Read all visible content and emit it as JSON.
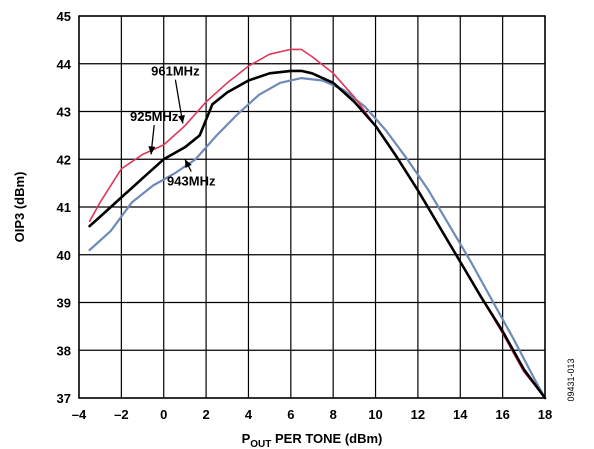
{
  "chart_data": {
    "type": "line",
    "title": "",
    "xlabel_main": "P",
    "xlabel_sub": "OUT",
    "xlabel_rest": " PER TONE (dBm)",
    "ylabel": "OIP3 (dBm)",
    "xlim": [
      -4,
      18
    ],
    "ylim": [
      37,
      45
    ],
    "xticks": [
      -4,
      -2,
      0,
      2,
      4,
      6,
      8,
      10,
      12,
      14,
      16,
      18
    ],
    "xtick_labels": [
      "–4",
      "–2",
      "0",
      "2",
      "4",
      "6",
      "8",
      "10",
      "12",
      "14",
      "16",
      "18"
    ],
    "yticks": [
      37,
      38,
      39,
      40,
      41,
      42,
      43,
      44,
      45
    ],
    "ytick_labels": [
      "37",
      "38",
      "39",
      "40",
      "41",
      "42",
      "43",
      "44",
      "45"
    ],
    "grid": true,
    "figure_id": "09431-013",
    "series": [
      {
        "name": "961MHz",
        "color": "#e0365a",
        "x": [
          -3.5,
          -3,
          -2,
          -1,
          0,
          1,
          2,
          3,
          4,
          5,
          6,
          6.5,
          7,
          8,
          9,
          10,
          11,
          12,
          13,
          14,
          15,
          16,
          17,
          18
        ],
        "y": [
          40.7,
          41.1,
          41.8,
          42.1,
          42.3,
          42.7,
          43.2,
          43.6,
          43.95,
          44.2,
          44.3,
          44.3,
          44.15,
          43.8,
          43.3,
          42.7,
          42.05,
          41.35,
          40.6,
          39.85,
          39.1,
          38.35,
          37.55,
          36.7
        ]
      },
      {
        "name": "925MHz",
        "color": "#000000",
        "x": [
          -3.5,
          -3,
          -2,
          -1,
          0,
          1,
          1.7,
          2.3,
          3,
          4,
          5,
          6,
          6.5,
          7,
          8,
          9,
          10,
          11,
          12,
          13,
          14,
          15,
          16,
          17,
          18
        ],
        "y": [
          40.6,
          40.8,
          41.2,
          41.6,
          42.0,
          42.25,
          42.5,
          43.15,
          43.4,
          43.65,
          43.8,
          43.85,
          43.85,
          43.8,
          43.6,
          43.2,
          42.7,
          42.05,
          41.35,
          40.6,
          39.85,
          39.1,
          38.4,
          37.6,
          36.8
        ]
      },
      {
        "name": "943MHz",
        "color": "#6f8ab8",
        "x": [
          -3.5,
          -2.5,
          -1.5,
          -0.5,
          0.5,
          1.5,
          2.5,
          3.5,
          4.5,
          5.5,
          6.5,
          7.5,
          8.5,
          9.5,
          10.5,
          11.5,
          12.5,
          13.5,
          14.5,
          15.5,
          16.5,
          17.5,
          18
        ],
        "y": [
          40.1,
          40.5,
          41.1,
          41.45,
          41.7,
          42.0,
          42.5,
          42.95,
          43.35,
          43.6,
          43.7,
          43.65,
          43.45,
          43.1,
          42.6,
          42.0,
          41.35,
          40.6,
          39.85,
          39.05,
          38.25,
          37.4,
          36.95
        ]
      }
    ],
    "annotations": [
      {
        "text": "961MHz",
        "x": 0.55,
        "y": 43.75,
        "arrow_to_x": 0.9,
        "arrow_to_y": 42.75
      },
      {
        "text": "925MHz",
        "x": -0.45,
        "y": 42.8,
        "arrow_to_x": -0.6,
        "arrow_to_y": 42.1
      },
      {
        "text": "943MHz",
        "x": 1.3,
        "y": 41.45,
        "arrow_to_x": 1.0,
        "arrow_to_y": 42.0
      }
    ]
  }
}
